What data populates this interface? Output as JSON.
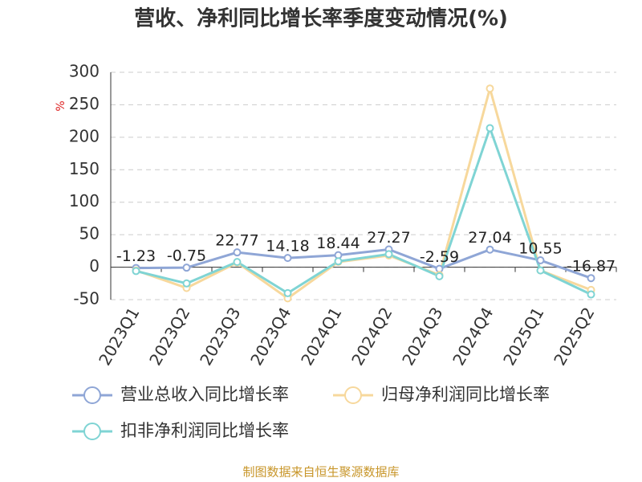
{
  "chart_data": {
    "type": "line",
    "title": "营收、净利同比增长率季度变动情况(%)",
    "y_unit": "%",
    "categories": [
      "2023Q1",
      "2023Q2",
      "2023Q3",
      "2023Q4",
      "2024Q1",
      "2024Q2",
      "2024Q3",
      "2024Q4",
      "2025Q1",
      "2025Q2"
    ],
    "series": [
      {
        "name": "营业总收入同比增长率",
        "color": "#8fa6d6",
        "values": [
          -1.23,
          -0.75,
          22.77,
          14.18,
          18.44,
          27.27,
          -2.59,
          27.04,
          10.55,
          -16.87
        ],
        "show_labels": true
      },
      {
        "name": "归母净利润同比增长率",
        "color": "#f7d89c",
        "values": [
          -5,
          -32,
          7,
          -48,
          8,
          18,
          -12,
          275,
          -5,
          -35
        ],
        "show_labels": false
      },
      {
        "name": "扣非净利润同比增长率",
        "color": "#7fd4d4",
        "values": [
          -6,
          -25,
          8,
          -40,
          9,
          20,
          -14,
          214,
          -5,
          -42
        ],
        "show_labels": false
      }
    ],
    "ylim": [
      -50,
      300
    ],
    "yticks": [
      -50,
      0,
      50,
      100,
      150,
      200,
      250,
      300
    ],
    "grid": true,
    "source": "制图数据来自恒生聚源数据库"
  }
}
